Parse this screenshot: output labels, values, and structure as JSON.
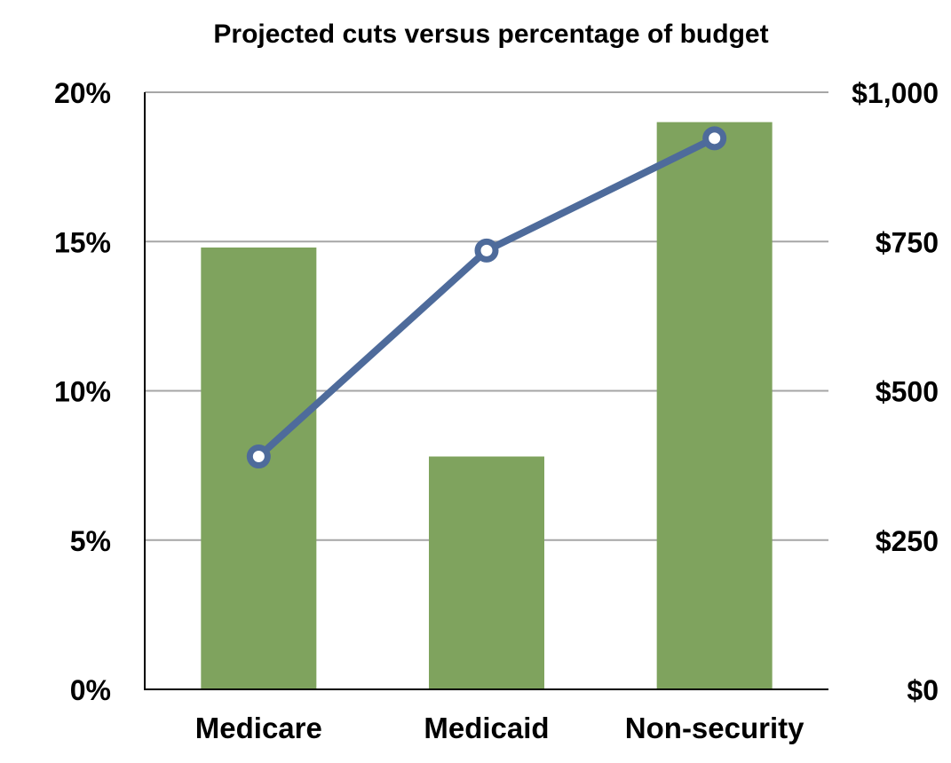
{
  "chart_data": {
    "type": "bar",
    "title": "Projected cuts versus percentage of budget",
    "categories": [
      "Medicare",
      "Medicaid",
      "Non-security"
    ],
    "series": [
      {
        "name": "Percentage of budget",
        "kind": "bar",
        "axis": "left",
        "color": "#7fa35e",
        "values": [
          14.8,
          7.8,
          19.0
        ]
      },
      {
        "name": "Projected cuts",
        "kind": "line",
        "axis": "right",
        "color": "#4e6b9b",
        "values": [
          390,
          735,
          923
        ]
      }
    ],
    "left_axis": {
      "range": [
        0,
        20
      ],
      "ticks": [
        0,
        5,
        10,
        15,
        20
      ],
      "tick_labels": [
        "0%",
        "5%",
        "10%",
        "15%",
        "20%"
      ]
    },
    "right_axis": {
      "range": [
        0,
        1000
      ],
      "ticks": [
        0,
        250,
        500,
        750,
        1000
      ],
      "tick_labels": [
        "$0",
        "$250",
        "$500",
        "$750",
        "$1,000"
      ]
    },
    "xlabel": "",
    "ylabel": "",
    "grid": true,
    "legend": "none",
    "colors": {
      "gridline": "#a6a6a6",
      "axis": "#000000"
    }
  }
}
